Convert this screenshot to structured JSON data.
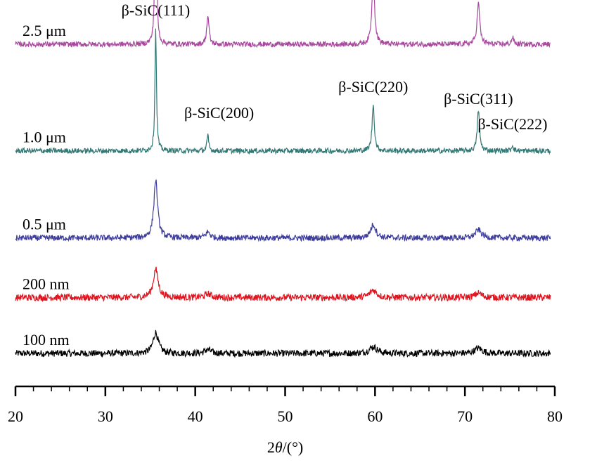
{
  "chart_data": {
    "type": "line",
    "title": "",
    "xlabel": "2θ/(°)",
    "xlabel_parts": {
      "prefix": "2",
      "italic": "θ",
      "suffix": "/(°)"
    },
    "ylabel": "",
    "xlim": [
      20,
      80
    ],
    "xticks": [
      20,
      30,
      40,
      50,
      60,
      70,
      80
    ],
    "grid": false,
    "legend": "none",
    "x_start": 20,
    "x_end": 79.5,
    "series": [
      {
        "name": "100 nm",
        "color": "#000000",
        "baseline": 0.0,
        "noise": 0.045,
        "peaks": [
          {
            "x": 35.6,
            "h": 0.28,
            "w": 0.35
          },
          {
            "x": 41.4,
            "h": 0.05,
            "w": 0.4
          },
          {
            "x": 59.8,
            "h": 0.09,
            "w": 0.5
          },
          {
            "x": 71.5,
            "h": 0.07,
            "w": 0.5
          }
        ]
      },
      {
        "name": "200 nm",
        "color": "#e0141e",
        "baseline": 0.75,
        "noise": 0.045,
        "peaks": [
          {
            "x": 35.6,
            "h": 0.38,
            "w": 0.32
          },
          {
            "x": 41.4,
            "h": 0.05,
            "w": 0.4
          },
          {
            "x": 59.8,
            "h": 0.1,
            "w": 0.45
          },
          {
            "x": 71.5,
            "h": 0.06,
            "w": 0.45
          }
        ]
      },
      {
        "name": "0.5 μm",
        "color": "#3c3c9c",
        "baseline": 1.55,
        "noise": 0.04,
        "peaks": [
          {
            "x": 35.6,
            "h": 0.78,
            "w": 0.25
          },
          {
            "x": 41.4,
            "h": 0.08,
            "w": 0.3
          },
          {
            "x": 59.8,
            "h": 0.18,
            "w": 0.35
          },
          {
            "x": 71.5,
            "h": 0.11,
            "w": 0.4
          }
        ]
      },
      {
        "name": "1.0 μm",
        "color": "#327874",
        "baseline": 2.72,
        "noise": 0.035,
        "peaks": [
          {
            "x": 35.6,
            "h": 1.65,
            "w": 0.1
          },
          {
            "x": 41.4,
            "h": 0.2,
            "w": 0.12
          },
          {
            "x": 59.8,
            "h": 0.62,
            "w": 0.15
          },
          {
            "x": 71.5,
            "h": 0.55,
            "w": 0.15
          },
          {
            "x": 75.3,
            "h": 0.08,
            "w": 0.12
          }
        ]
      },
      {
        "name": "2.5 μm",
        "color": "#a8489e",
        "baseline": 4.15,
        "noise": 0.035,
        "peaks": [
          {
            "x": 35.6,
            "h": 2.65,
            "w": 0.1
          },
          {
            "x": 41.4,
            "h": 0.38,
            "w": 0.15
          },
          {
            "x": 59.8,
            "h": 0.9,
            "w": 0.18
          },
          {
            "x": 71.5,
            "h": 0.55,
            "w": 0.18
          },
          {
            "x": 75.3,
            "h": 0.09,
            "w": 0.15
          }
        ]
      }
    ],
    "annotations": [
      {
        "text": "β-SiC(111)",
        "x": 35.6
      },
      {
        "text": "β-SiC(200)",
        "x": 41.4
      },
      {
        "text": "β-SiC(220)",
        "x": 59.8
      },
      {
        "text": "β-SiC(311)",
        "x": 71.5
      },
      {
        "text": "β-SiC(222)",
        "x": 75.3
      }
    ]
  }
}
